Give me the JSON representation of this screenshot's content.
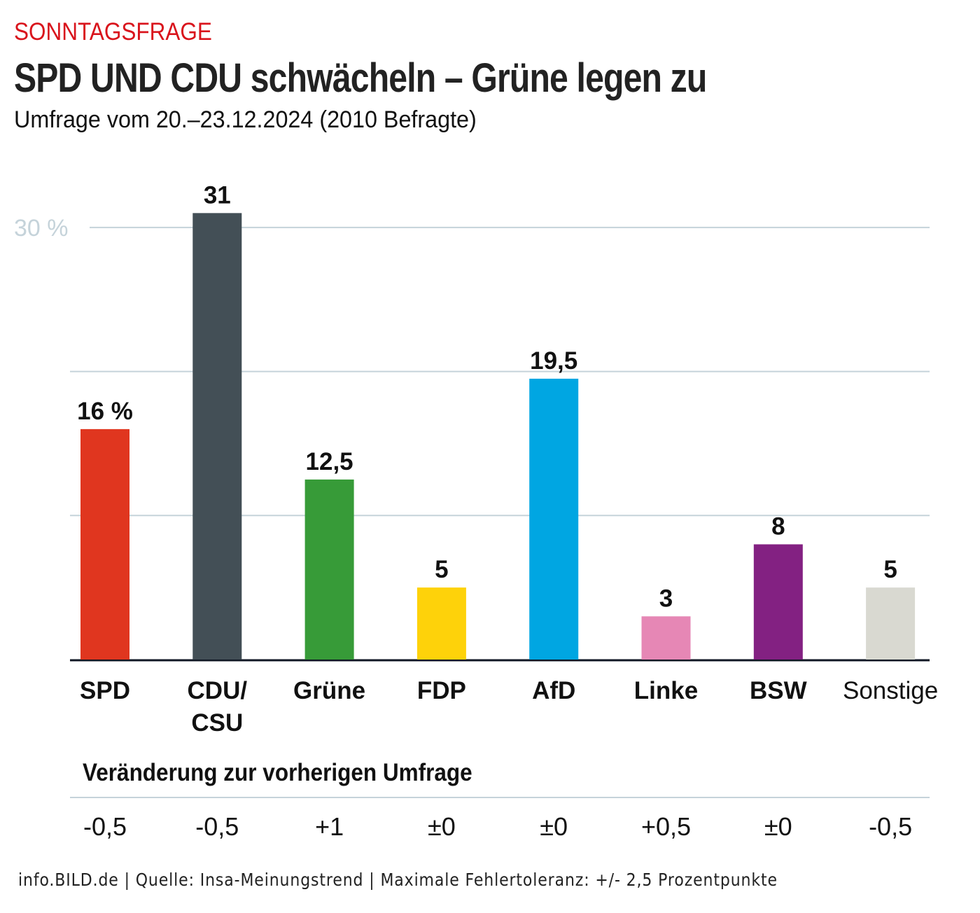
{
  "header": {
    "kicker": "SONNTAGSFRAGE",
    "title": "SPD UND CDU schwächeln – Grüne legen zu",
    "subtitle": "Umfrage vom 20.–23.12.2024 (2010 Befragte)"
  },
  "chart_data": {
    "type": "bar",
    "title": "SPD UND CDU schwächeln – Grüne legen zu",
    "subtitle": "Umfrage vom 20.–23.12.2024 (2010 Befragte)",
    "xlabel": "",
    "ylabel": "",
    "ylim": [
      0,
      31
    ],
    "grid": true,
    "gridlines": [
      10,
      20,
      30
    ],
    "y_tick_labels": [
      {
        "value": 30,
        "label": "30 %"
      }
    ],
    "unit": "%",
    "categories": [
      "SPD",
      "CDU/CSU",
      "Grüne",
      "FDP",
      "AfD",
      "Linke",
      "BSW",
      "Sonstige"
    ],
    "category_label_lines": [
      [
        "SPD"
      ],
      [
        "CDU/",
        "CSU"
      ],
      [
        "Grüne"
      ],
      [
        "FDP"
      ],
      [
        "AfD"
      ],
      [
        "Linke"
      ],
      [
        "BSW"
      ],
      [
        "Sonstige"
      ]
    ],
    "category_label_bold": [
      true,
      true,
      true,
      true,
      true,
      true,
      true,
      false
    ],
    "values": [
      16,
      31,
      12.5,
      5,
      19.5,
      3,
      8,
      5
    ],
    "value_labels": [
      "16 %",
      "31",
      "12,5",
      "5",
      "19,5",
      "3",
      "8",
      "5"
    ],
    "colors": [
      "#e0361f",
      "#434f56",
      "#379b38",
      "#fed20a",
      "#00a6e2",
      "#e687b5",
      "#832182",
      "#d9d9d1"
    ],
    "changes_title": "Veränderung zur vorherigen Umfrage",
    "changes": [
      "-0,5",
      "-0,5",
      "+1",
      "±0",
      "±0",
      "+0,5",
      "±0",
      "-0,5"
    ],
    "legend": "none"
  },
  "footer": {
    "text": "info.BILD.de | Quelle: Insa-Meinungstrend | Maximale Fehlertoleranz: +/- 2,5 Prozentpunkte"
  },
  "colors": {
    "kicker": "#d9141c",
    "gridline": "#c5d3da",
    "axis_label": "#c5d3da",
    "baseline": "#0f1623"
  }
}
